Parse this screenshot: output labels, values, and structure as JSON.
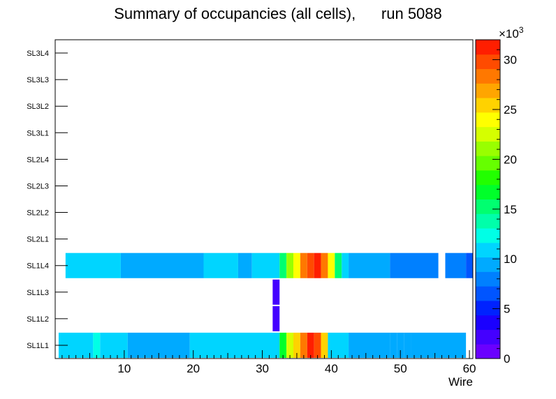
{
  "chart_data": {
    "type": "heatmap",
    "title": "Summary of occupancies (all cells),      run 5088",
    "xlabel": "Wire",
    "xlim": [
      0,
      60.5
    ],
    "x_ticks": [
      10,
      20,
      30,
      40,
      50,
      60
    ],
    "y_categories": [
      "SL1L1",
      "SL1L2",
      "SL1L3",
      "SL1L4",
      "SL2L1",
      "SL2L2",
      "SL2L3",
      "SL2L4",
      "SL3L1",
      "SL3L2",
      "SL3L3",
      "SL3L4"
    ],
    "z_range": [
      0,
      32000
    ],
    "colorbar_ticks": [
      "0",
      "5",
      "10",
      "15",
      "20",
      "25",
      "30"
    ],
    "colorbar_tick_values": [
      0,
      5000,
      10000,
      15000,
      20000,
      25000,
      30000
    ],
    "colorbar_exponent": "×10",
    "colorbar_exponent_power": "3",
    "colors": [
      "#6a00ff",
      "#4400ff",
      "#1a00ff",
      "#0022ff",
      "#0055ff",
      "#0080ff",
      "#00aaff",
      "#00d5ff",
      "#00ffe6",
      "#00ffaa",
      "#00ff70",
      "#00ff2a",
      "#22ff00",
      "#66ff00",
      "#99ff00",
      "#d5ff00",
      "#ffff00",
      "#ffd200",
      "#ffa500",
      "#ff7800",
      "#ff4b00",
      "#ff1e00"
    ],
    "rows": [
      {
        "layer": "SL1L1",
        "cells": [
          [
            1,
            5,
            11000
          ],
          [
            6,
            6,
            12000
          ],
          [
            7,
            10,
            11000
          ],
          [
            11,
            19,
            9500
          ],
          [
            20,
            32,
            11000
          ],
          [
            33,
            33,
            16000
          ],
          [
            34,
            34,
            23000
          ],
          [
            35,
            35,
            26000
          ],
          [
            36,
            36,
            28000
          ],
          [
            37,
            37,
            31500
          ],
          [
            38,
            38,
            30000
          ],
          [
            39,
            39,
            26000
          ],
          [
            40,
            42,
            11000
          ],
          [
            43,
            47,
            9500
          ],
          [
            48,
            48,
            9000
          ],
          [
            49,
            49,
            10000
          ],
          [
            50,
            50,
            9000
          ],
          [
            51,
            51,
            10000
          ],
          [
            52,
            59,
            9000
          ]
        ]
      },
      {
        "layer": "SL1L2",
        "cells": [
          [
            32,
            32,
            1500
          ]
        ]
      },
      {
        "layer": "SL1L3",
        "cells": [
          [
            32,
            32,
            1500
          ]
        ]
      },
      {
        "layer": "SL1L4",
        "cells": [
          [
            2,
            9,
            11000
          ],
          [
            10,
            21,
            9500
          ],
          [
            22,
            26,
            11000
          ],
          [
            27,
            28,
            9500
          ],
          [
            29,
            32,
            11000
          ],
          [
            33,
            33,
            15000
          ],
          [
            34,
            34,
            21000
          ],
          [
            35,
            35,
            24000
          ],
          [
            36,
            36,
            28000
          ],
          [
            37,
            37,
            30000
          ],
          [
            38,
            38,
            32000
          ],
          [
            39,
            39,
            29000
          ],
          [
            40,
            40,
            24000
          ],
          [
            41,
            41,
            15000
          ],
          [
            42,
            42,
            11000
          ],
          [
            43,
            48,
            9500
          ],
          [
            49,
            55,
            8500
          ],
          [
            57,
            59,
            8500
          ],
          [
            60,
            61,
            7000
          ]
        ]
      }
    ]
  }
}
